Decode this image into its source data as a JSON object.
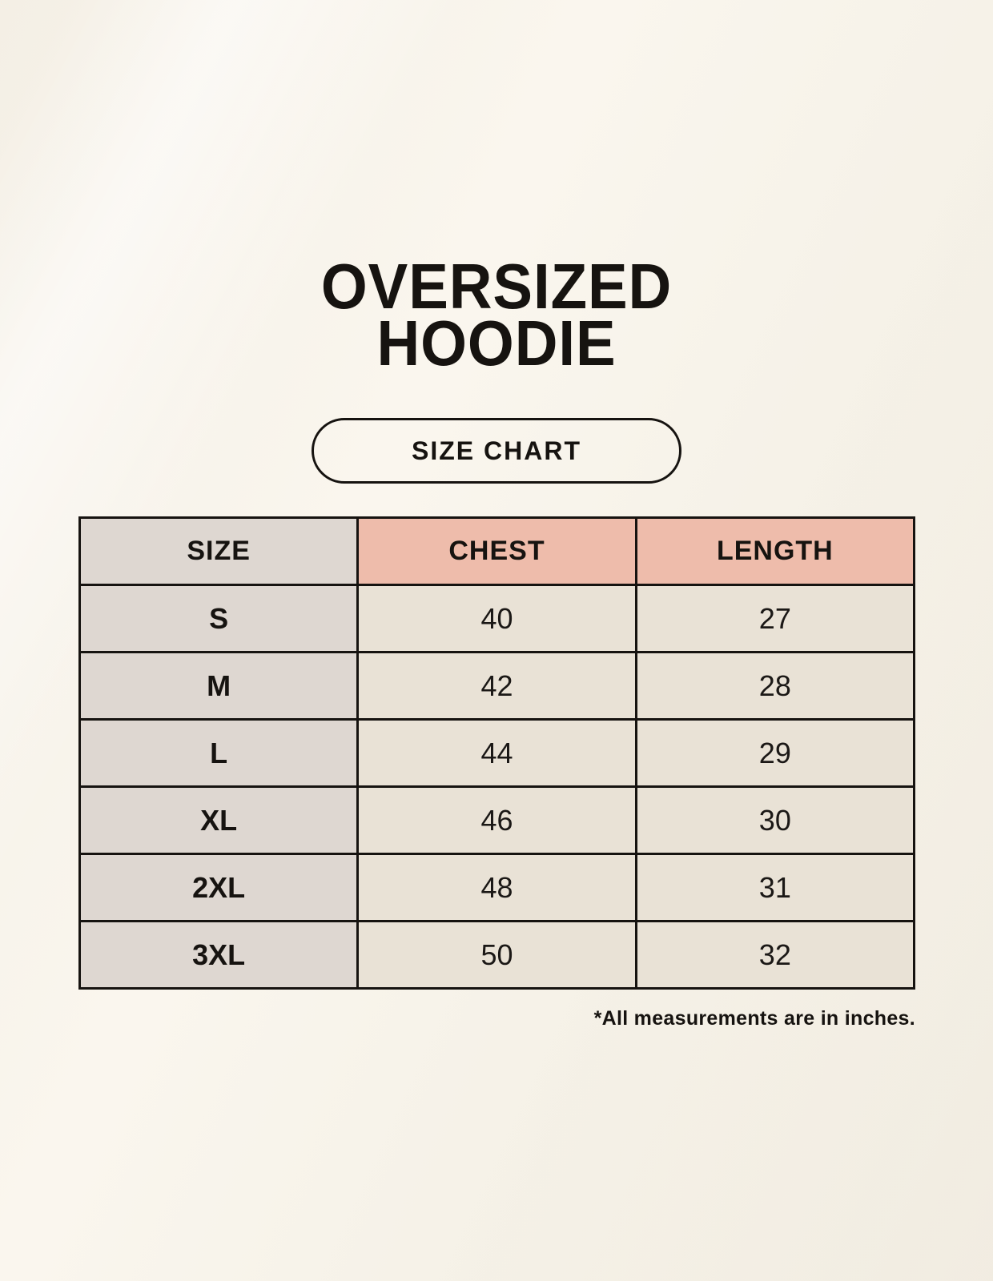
{
  "chart_data": {
    "type": "table",
    "title_lines": [
      "OVERSIZED",
      "HOODIE"
    ],
    "subtitle": "SIZE CHART",
    "columns": [
      "SIZE",
      "CHEST",
      "LENGTH"
    ],
    "rows": [
      [
        "S",
        "40",
        "27"
      ],
      [
        "M",
        "42",
        "28"
      ],
      [
        "L",
        "44",
        "29"
      ],
      [
        "XL",
        "46",
        "30"
      ],
      [
        "2XL",
        "48",
        "31"
      ],
      [
        "3XL",
        "50",
        "32"
      ]
    ],
    "footnote": "*All measurements are in inches."
  },
  "colors": {
    "background": "#f7f3ea",
    "size_column_bg": "#ded7d1",
    "header_accent_bg": "#eebcab",
    "cell_bg": "#e9e2d6",
    "border": "#161310",
    "text": "#1b1816"
  }
}
